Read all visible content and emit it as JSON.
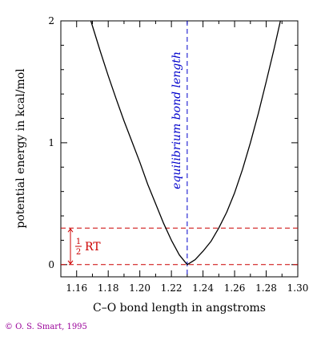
{
  "chart_data": {
    "type": "line",
    "title": "",
    "xlabel": "C–O bond length in angstroms",
    "ylabel": "potential energy in kcal/mol",
    "xlim": [
      1.15,
      1.3
    ],
    "ylim": [
      -0.1,
      2.0
    ],
    "x_ticks": [
      1.16,
      1.18,
      1.2,
      1.22,
      1.24,
      1.26,
      1.28,
      1.3
    ],
    "x_tick_labels": [
      "1.16",
      "1.18",
      "1.20",
      "1.22",
      "1.24",
      "1.26",
      "1.28",
      "1.30"
    ],
    "y_ticks": [
      0,
      1,
      2
    ],
    "y_tick_labels": [
      "0",
      "1",
      "2"
    ],
    "grid": false,
    "series": [
      {
        "color": "#000000",
        "style": "solid",
        "x": [
          1.169,
          1.175,
          1.18,
          1.185,
          1.19,
          1.195,
          1.2,
          1.205,
          1.21,
          1.215,
          1.22,
          1.225,
          1.23,
          1.235,
          1.24,
          1.245,
          1.25,
          1.255,
          1.26,
          1.265,
          1.27,
          1.275,
          1.28,
          1.285,
          1.289
        ],
        "y": [
          2.0,
          1.75,
          1.55,
          1.36,
          1.18,
          1.01,
          0.84,
          0.66,
          0.5,
          0.34,
          0.2,
          0.08,
          0.0,
          0.04,
          0.11,
          0.19,
          0.3,
          0.43,
          0.59,
          0.78,
          1.0,
          1.24,
          1.5,
          1.77,
          2.0
        ]
      }
    ],
    "annotations": {
      "equilibrium_label": "equilibrium bond length",
      "equilibrium_x": 1.23,
      "equilibrium_color": "#0000cc",
      "rt_label_fraction": "1/2",
      "rt_label_num": "1",
      "rt_label_den": "2",
      "rt_label_rest": "RT",
      "rt_energy": 0.3,
      "rt_color": "#cc0000"
    }
  },
  "footer": {
    "text": "© O. S. Smart, 1995",
    "color": "#990099"
  }
}
